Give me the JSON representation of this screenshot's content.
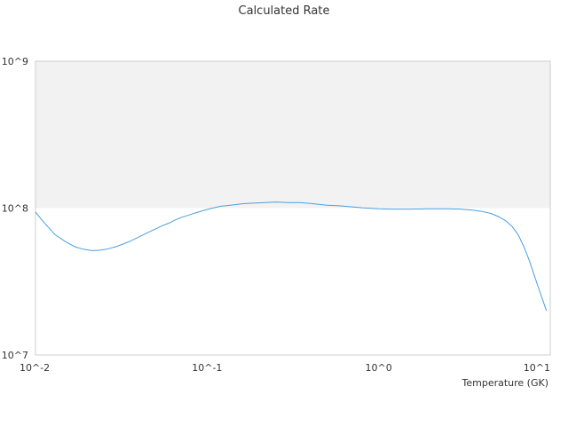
{
  "chart_data": {
    "type": "line",
    "title": "Calculated Rate",
    "xlabel": "Temperature (GK)",
    "ylabel": "",
    "x_scale": "log",
    "y_scale": "log",
    "xlim": [
      0.01,
      10
    ],
    "ylim": [
      10000000,
      1000000000
    ],
    "x_ticks": [
      "10^-2",
      "10^-1",
      "10^0",
      "10^1"
    ],
    "y_ticks": [
      "10^9",
      "10^8",
      "10^7"
    ],
    "shaded_band": [
      100000000,
      1000000000
    ],
    "colors": {
      "line": "#4a9fe0",
      "band": "#f2f2f2",
      "border": "#cccccc"
    },
    "series": [
      {
        "x": [
          0.01,
          0.011,
          0.012,
          0.013,
          0.015,
          0.017,
          0.019,
          0.021,
          0.023,
          0.026,
          0.03,
          0.035,
          0.04,
          0.045,
          0.05,
          0.055,
          0.06,
          0.065,
          0.07,
          0.08,
          0.09,
          0.1,
          0.12,
          0.14,
          0.16,
          0.18,
          0.2,
          0.25,
          0.3,
          0.35,
          0.4,
          0.5,
          0.6,
          0.7,
          0.8,
          1.0,
          1.2,
          1.5,
          2.0,
          2.5,
          3.0,
          3.5,
          4.0,
          4.5,
          5.0,
          5.5,
          6.0,
          6.5,
          7.0,
          7.5,
          8.0,
          8.5,
          9.0,
          9.5
        ],
        "y": [
          94000000,
          82000000,
          73000000,
          66000000,
          59000000,
          54500000,
          52500000,
          51500000,
          51500000,
          52500000,
          55000000,
          59000000,
          63500000,
          68000000,
          72000000,
          76000000,
          79000000,
          83000000,
          86000000,
          90500000,
          94500000,
          98000000,
          103000000,
          105000000,
          107000000,
          108000000,
          108500000,
          110000000,
          109000000,
          109000000,
          107500000,
          104500000,
          103500000,
          102000000,
          100500000,
          99000000,
          98500000,
          98500000,
          99000000,
          99000000,
          98500000,
          97000000,
          95000000,
          92000000,
          87500000,
          82000000,
          75000000,
          66000000,
          55000000,
          45000000,
          36000000,
          29000000,
          24000000,
          20000000
        ]
      }
    ]
  }
}
